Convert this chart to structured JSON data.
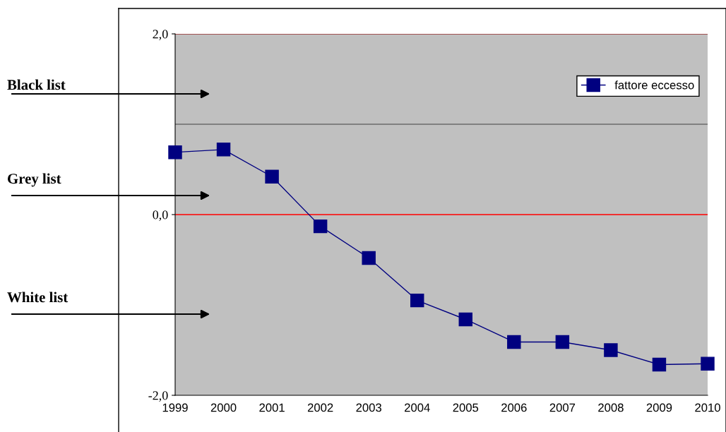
{
  "chart_data": {
    "type": "line",
    "categories": [
      "1999",
      "2000",
      "2001",
      "2002",
      "2003",
      "2004",
      "2005",
      "2006",
      "2007",
      "2008",
      "2009",
      "2010"
    ],
    "series": [
      {
        "name": "fattore eccesso",
        "color": "#000080",
        "values": [
          0.69,
          0.72,
          0.42,
          -0.13,
          -0.48,
          -0.95,
          -1.16,
          -1.41,
          -1.41,
          -1.5,
          -1.66,
          -1.65
        ]
      }
    ],
    "ylim": [
      -2,
      2
    ],
    "yticks": [
      {
        "value": -2,
        "label": "-2,0"
      },
      {
        "value": 0,
        "label": "0,0"
      },
      {
        "value": 2,
        "label": "2,0"
      }
    ],
    "ref_lines": [
      {
        "axis": "y",
        "value": 2,
        "color": "#a05050"
      },
      {
        "axis": "y",
        "value": 1,
        "color": "#808080"
      },
      {
        "axis": "y",
        "value": 0,
        "color": "#ff0000"
      }
    ],
    "annotations": [
      "Black list",
      "Grey list",
      "White list"
    ],
    "marker": "square",
    "line_style": "solid",
    "legend": "top right",
    "grid": false
  }
}
